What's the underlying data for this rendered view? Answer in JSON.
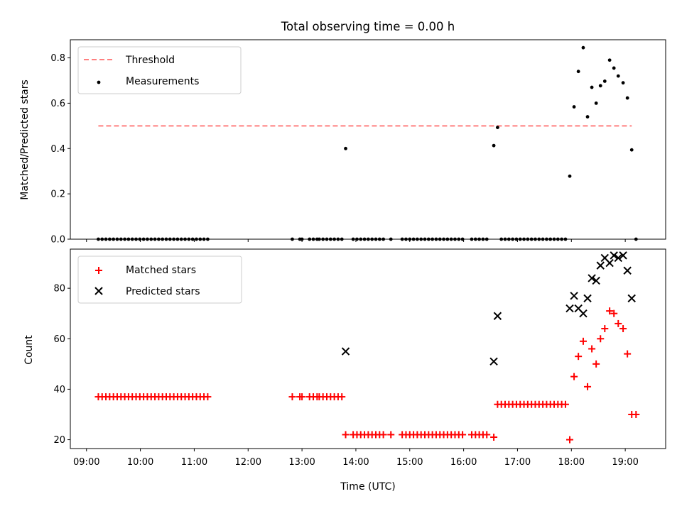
{
  "chart_data": {
    "title": "Total observing time = 0.00 h",
    "xlabel": "Time (UTC)",
    "x_unit": "hours UTC",
    "xlim": [
      8.7,
      19.75
    ],
    "x_ticks": [
      {
        "value": 9,
        "label": "09:00"
      },
      {
        "value": 10,
        "label": "10:00"
      },
      {
        "value": 11,
        "label": "11:00"
      },
      {
        "value": 12,
        "label": "12:00"
      },
      {
        "value": 13,
        "label": "13:00"
      },
      {
        "value": 14,
        "label": "14:00"
      },
      {
        "value": 15,
        "label": "15:00"
      },
      {
        "value": 16,
        "label": "16:00"
      },
      {
        "value": 17,
        "label": "17:00"
      },
      {
        "value": 18,
        "label": "18:00"
      },
      {
        "value": 19,
        "label": "19:00"
      }
    ],
    "top": {
      "type": "scatter",
      "ylabel": "Matched/Predicted stars",
      "ylim": [
        0,
        0.88
      ],
      "y_ticks": [
        {
          "value": 0.0,
          "label": "0.0"
        },
        {
          "value": 0.2,
          "label": "0.2"
        },
        {
          "value": 0.4,
          "label": "0.4"
        },
        {
          "value": 0.6,
          "label": "0.6"
        },
        {
          "value": 0.8,
          "label": "0.8"
        }
      ],
      "legend_position": "top-left",
      "threshold": {
        "name": "Threshold",
        "value": 0.5,
        "x_range": [
          9.22,
          19.12
        ],
        "color": "#ff7f7f"
      },
      "measurements": {
        "name": "Measurements",
        "color": "#000000",
        "x": [
          9.22,
          9.29,
          9.36,
          9.43,
          9.5,
          9.57,
          9.64,
          9.71,
          9.78,
          9.85,
          9.92,
          9.99,
          10.06,
          10.13,
          10.2,
          10.27,
          10.34,
          10.41,
          10.48,
          10.55,
          10.62,
          10.69,
          10.76,
          10.83,
          10.9,
          10.97,
          11.04,
          11.11,
          11.18,
          11.25,
          12.82,
          12.96,
          13.0,
          13.14,
          13.21,
          13.28,
          13.32,
          13.39,
          13.46,
          13.53,
          13.6,
          13.67,
          13.74,
          13.81,
          13.95,
          14.02,
          14.09,
          14.16,
          14.23,
          14.3,
          14.37,
          14.44,
          14.51,
          14.65,
          14.86,
          14.93,
          15.0,
          15.07,
          15.14,
          15.21,
          15.28,
          15.35,
          15.42,
          15.49,
          15.56,
          15.63,
          15.7,
          15.77,
          15.84,
          15.91,
          15.98,
          16.15,
          16.22,
          16.29,
          16.36,
          16.43,
          16.56,
          16.63,
          16.7,
          16.77,
          16.84,
          16.91,
          16.98,
          17.05,
          17.12,
          17.19,
          17.26,
          17.33,
          17.4,
          17.47,
          17.54,
          17.61,
          17.68,
          17.75,
          17.82,
          17.89,
          17.97,
          18.05,
          18.13,
          18.22,
          18.3,
          18.38,
          18.46,
          18.54,
          18.62,
          18.71,
          18.79,
          18.87,
          18.96,
          19.04,
          19.12,
          19.2
        ],
        "y": [
          0,
          0,
          0,
          0,
          0,
          0,
          0,
          0,
          0,
          0,
          0,
          0,
          0,
          0,
          0,
          0,
          0,
          0,
          0,
          0,
          0,
          0,
          0,
          0,
          0,
          0,
          0,
          0,
          0,
          0,
          0,
          0,
          0,
          0,
          0,
          0,
          0,
          0,
          0,
          0,
          0,
          0,
          0,
          0.4,
          0,
          0,
          0,
          0,
          0,
          0,
          0,
          0,
          0,
          0,
          0,
          0,
          0,
          0,
          0,
          0,
          0,
          0,
          0,
          0,
          0,
          0,
          0,
          0,
          0,
          0,
          0,
          0,
          0,
          0,
          0,
          0,
          0.413,
          0.493,
          0,
          0,
          0,
          0,
          0,
          0,
          0,
          0,
          0,
          0,
          0,
          0,
          0,
          0,
          0,
          0,
          0,
          0,
          0.278,
          0.584,
          0.74,
          0.845,
          0.54,
          0.67,
          0.6,
          0.677,
          0.697,
          0.79,
          0.755,
          0.72,
          0.69,
          0.623,
          0.394,
          0
        ]
      }
    },
    "bottom": {
      "type": "scatter",
      "ylabel": "Count",
      "ylim": [
        16.5,
        95.5
      ],
      "y_ticks": [
        {
          "value": 20,
          "label": "20"
        },
        {
          "value": 40,
          "label": "40"
        },
        {
          "value": 60,
          "label": "60"
        },
        {
          "value": 80,
          "label": "80"
        }
      ],
      "legend_position": "top-left",
      "matched": {
        "name": "Matched stars",
        "color": "#ff0000",
        "marker": "+",
        "x": [
          9.22,
          9.29,
          9.36,
          9.43,
          9.5,
          9.57,
          9.64,
          9.71,
          9.78,
          9.85,
          9.92,
          9.99,
          10.06,
          10.13,
          10.2,
          10.27,
          10.34,
          10.41,
          10.48,
          10.55,
          10.62,
          10.69,
          10.76,
          10.83,
          10.9,
          10.97,
          11.04,
          11.11,
          11.18,
          11.25,
          12.82,
          12.96,
          13.0,
          13.14,
          13.21,
          13.28,
          13.32,
          13.39,
          13.46,
          13.53,
          13.6,
          13.67,
          13.74,
          13.81,
          13.95,
          14.02,
          14.09,
          14.16,
          14.23,
          14.3,
          14.37,
          14.44,
          14.51,
          14.65,
          14.86,
          14.93,
          15.0,
          15.07,
          15.14,
          15.21,
          15.28,
          15.35,
          15.42,
          15.49,
          15.56,
          15.63,
          15.7,
          15.77,
          15.84,
          15.91,
          15.98,
          16.15,
          16.22,
          16.29,
          16.36,
          16.43,
          16.56,
          16.63,
          16.7,
          16.77,
          16.84,
          16.91,
          16.98,
          17.05,
          17.12,
          17.19,
          17.26,
          17.33,
          17.4,
          17.47,
          17.54,
          17.61,
          17.68,
          17.75,
          17.82,
          17.89,
          17.97,
          18.05,
          18.13,
          18.22,
          18.3,
          18.38,
          18.46,
          18.54,
          18.62,
          18.71,
          18.79,
          18.87,
          18.96,
          19.04,
          19.12,
          19.2
        ],
        "y": [
          37,
          37,
          37,
          37,
          37,
          37,
          37,
          37,
          37,
          37,
          37,
          37,
          37,
          37,
          37,
          37,
          37,
          37,
          37,
          37,
          37,
          37,
          37,
          37,
          37,
          37,
          37,
          37,
          37,
          37,
          37,
          37,
          37,
          37,
          37,
          37,
          37,
          37,
          37,
          37,
          37,
          37,
          37,
          22,
          22,
          22,
          22,
          22,
          22,
          22,
          22,
          22,
          22,
          22,
          22,
          22,
          22,
          22,
          22,
          22,
          22,
          22,
          22,
          22,
          22,
          22,
          22,
          22,
          22,
          22,
          22,
          22,
          22,
          22,
          22,
          22,
          21,
          34,
          34,
          34,
          34,
          34,
          34,
          34,
          34,
          34,
          34,
          34,
          34,
          34,
          34,
          34,
          34,
          34,
          34,
          34,
          20,
          45,
          53,
          59,
          41,
          56,
          50,
          60,
          64,
          71,
          70,
          66,
          64,
          54,
          30,
          30
        ]
      },
      "predicted": {
        "name": "Predicted stars",
        "color": "#000000",
        "marker": "x",
        "x": [
          13.81,
          16.56,
          16.63,
          17.97,
          18.05,
          18.13,
          18.22,
          18.3,
          18.38,
          18.46,
          18.54,
          18.62,
          18.71,
          18.79,
          18.87,
          18.96,
          19.04,
          19.12
        ],
        "y": [
          55,
          51,
          69,
          72,
          77,
          72,
          70,
          76,
          84,
          83,
          89,
          92,
          90,
          93,
          92,
          93,
          87,
          76
        ]
      }
    }
  }
}
